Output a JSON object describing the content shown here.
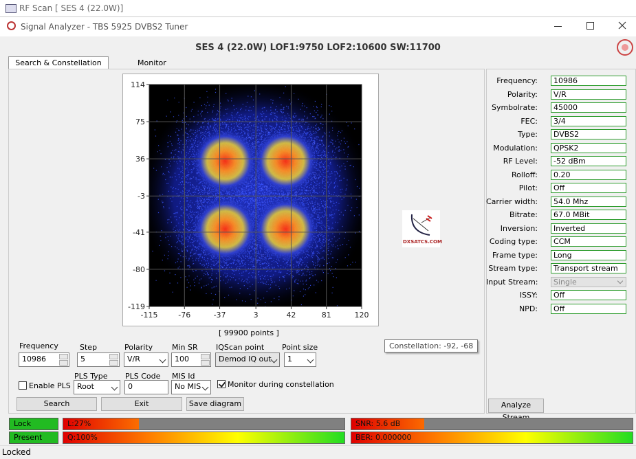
{
  "app_title": "RF Scan [ SES 4 (22.0W)]",
  "window_title": "Signal Analyzer - TBS 5925 DVBS2 Tuner",
  "header": "SES 4 (22.0W) LOF1:9750 LOF2:10600 SW:11700",
  "tabs": [
    "Search & Constellation",
    "Monitor"
  ],
  "constellation": {
    "xlim": [
      -115,
      120
    ],
    "ylim": [
      -119,
      114
    ],
    "xticks": [
      -115,
      -76,
      -37,
      3,
      42,
      81,
      120
    ],
    "yticks": [
      114,
      75,
      36,
      -3,
      -41,
      -80,
      -119
    ],
    "caption": "[ 99900 points ]",
    "tooltip": "Constellation: -92, -68"
  },
  "logo_text": "DXSATCS.COM",
  "info": [
    {
      "label": "Frequency:",
      "value": "10986"
    },
    {
      "label": "Polarity:",
      "value": "V/R"
    },
    {
      "label": "Symbolrate:",
      "value": "45000"
    },
    {
      "label": "FEC:",
      "value": "3/4"
    },
    {
      "label": "Type:",
      "value": "DVBS2"
    },
    {
      "label": "Modulation:",
      "value": "QPSK2"
    },
    {
      "label": "RF Level:",
      "value": "-52 dBm"
    },
    {
      "label": "Rolloff:",
      "value": "0.20"
    },
    {
      "label": "Pilot:",
      "value": "Off"
    },
    {
      "label": "Carrier width:",
      "value": "54.0 Mhz"
    },
    {
      "label": "Bitrate:",
      "value": "67.0 MBit"
    },
    {
      "label": "Inversion:",
      "value": "Inverted"
    },
    {
      "label": "Coding type:",
      "value": "CCM"
    },
    {
      "label": "Frame type:",
      "value": "Long"
    },
    {
      "label": "Stream type:",
      "value": "Transport stream"
    },
    {
      "label": "Input Stream:",
      "value": "Single",
      "disabled": true
    },
    {
      "label": "ISSY:",
      "value": "Off"
    },
    {
      "label": "NPD:",
      "value": "Off"
    }
  ],
  "controls": {
    "frequency": {
      "label": "Frequency",
      "value": "10986"
    },
    "step": {
      "label": "Step",
      "value": "5"
    },
    "polarity": {
      "label": "Polarity",
      "value": "V/R"
    },
    "min_sr": {
      "label": "Min SR",
      "value": "100"
    },
    "iqscan_point": {
      "label": "IQScan point",
      "value": "Demod IQ out"
    },
    "point_size": {
      "label": "Point size",
      "value": "1"
    },
    "enable_pls": {
      "label": "Enable PLS",
      "checked": false
    },
    "pls_type": {
      "label": "PLS Type",
      "value": "Root"
    },
    "pls_code": {
      "label": "PLS Code",
      "value": "0"
    },
    "mis_id": {
      "label": "MIS Id",
      "value": "No MIS"
    },
    "monitor": {
      "label": "Monitor during constellation",
      "checked": true
    }
  },
  "buttons": [
    "Search",
    "Exit",
    "Save diagram"
  ],
  "analyze_button": "Analyze Stream",
  "indicators": [
    "Lock",
    "Present"
  ],
  "meters": [
    {
      "label": "L:27%",
      "fill_percent": 27
    },
    {
      "label": "Q:100%",
      "fill_percent": 100
    },
    {
      "label": "SNR: 5.6 dB",
      "fill_percent": 26
    },
    {
      "label": "BER: 0.000000",
      "fill_percent": 100
    }
  ],
  "status": "Locked"
}
